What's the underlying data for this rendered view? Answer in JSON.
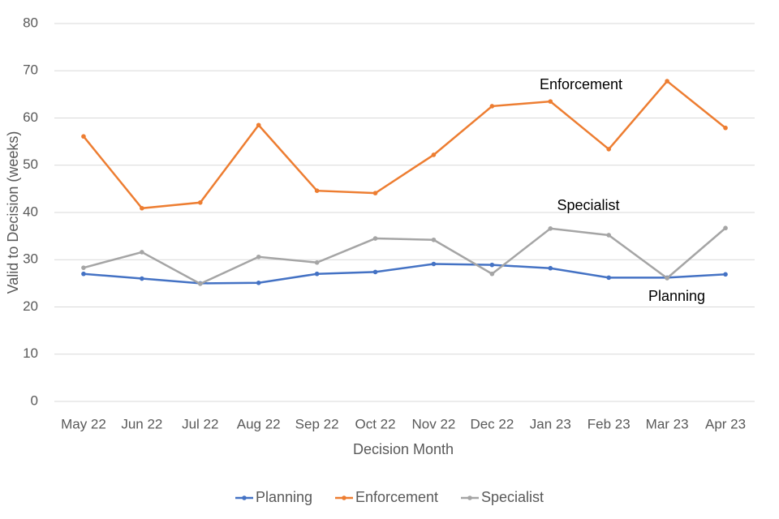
{
  "chart_data": {
    "type": "line",
    "x_label": "Decision Month",
    "y_label": "Valid to Decision (weeks)",
    "categories": [
      "May 22",
      "Jun 22",
      "Jul 22",
      "Aug 22",
      "Sep 22",
      "Oct 22",
      "Nov 22",
      "Dec 22",
      "Jan 23",
      "Feb 23",
      "Mar 23",
      "Apr 23"
    ],
    "series": [
      {
        "name": "Planning",
        "color": "#4472c4",
        "values": [
          27.0,
          26.0,
          25.0,
          25.1,
          27.0,
          27.4,
          29.1,
          28.9,
          28.2,
          26.2,
          26.2,
          26.9
        ]
      },
      {
        "name": "Enforcement",
        "color": "#ed7d31",
        "values": [
          56.1,
          40.9,
          42.1,
          58.5,
          44.6,
          44.1,
          52.2,
          62.5,
          63.5,
          53.4,
          67.8,
          57.9
        ]
      },
      {
        "name": "Specialist",
        "color": "#a5a5a5",
        "values": [
          28.3,
          31.6,
          24.9,
          30.6,
          29.4,
          34.5,
          34.2,
          27.0,
          36.6,
          35.2,
          26.1,
          36.7
        ]
      }
    ],
    "annotations": [
      "Enforcement",
      "Specialist",
      "Planning"
    ],
    "ylim": [
      0,
      80
    ],
    "yticks": [
      0,
      10,
      20,
      30,
      40,
      50,
      60,
      70,
      80
    ],
    "grid": true,
    "legend": "bottom"
  }
}
